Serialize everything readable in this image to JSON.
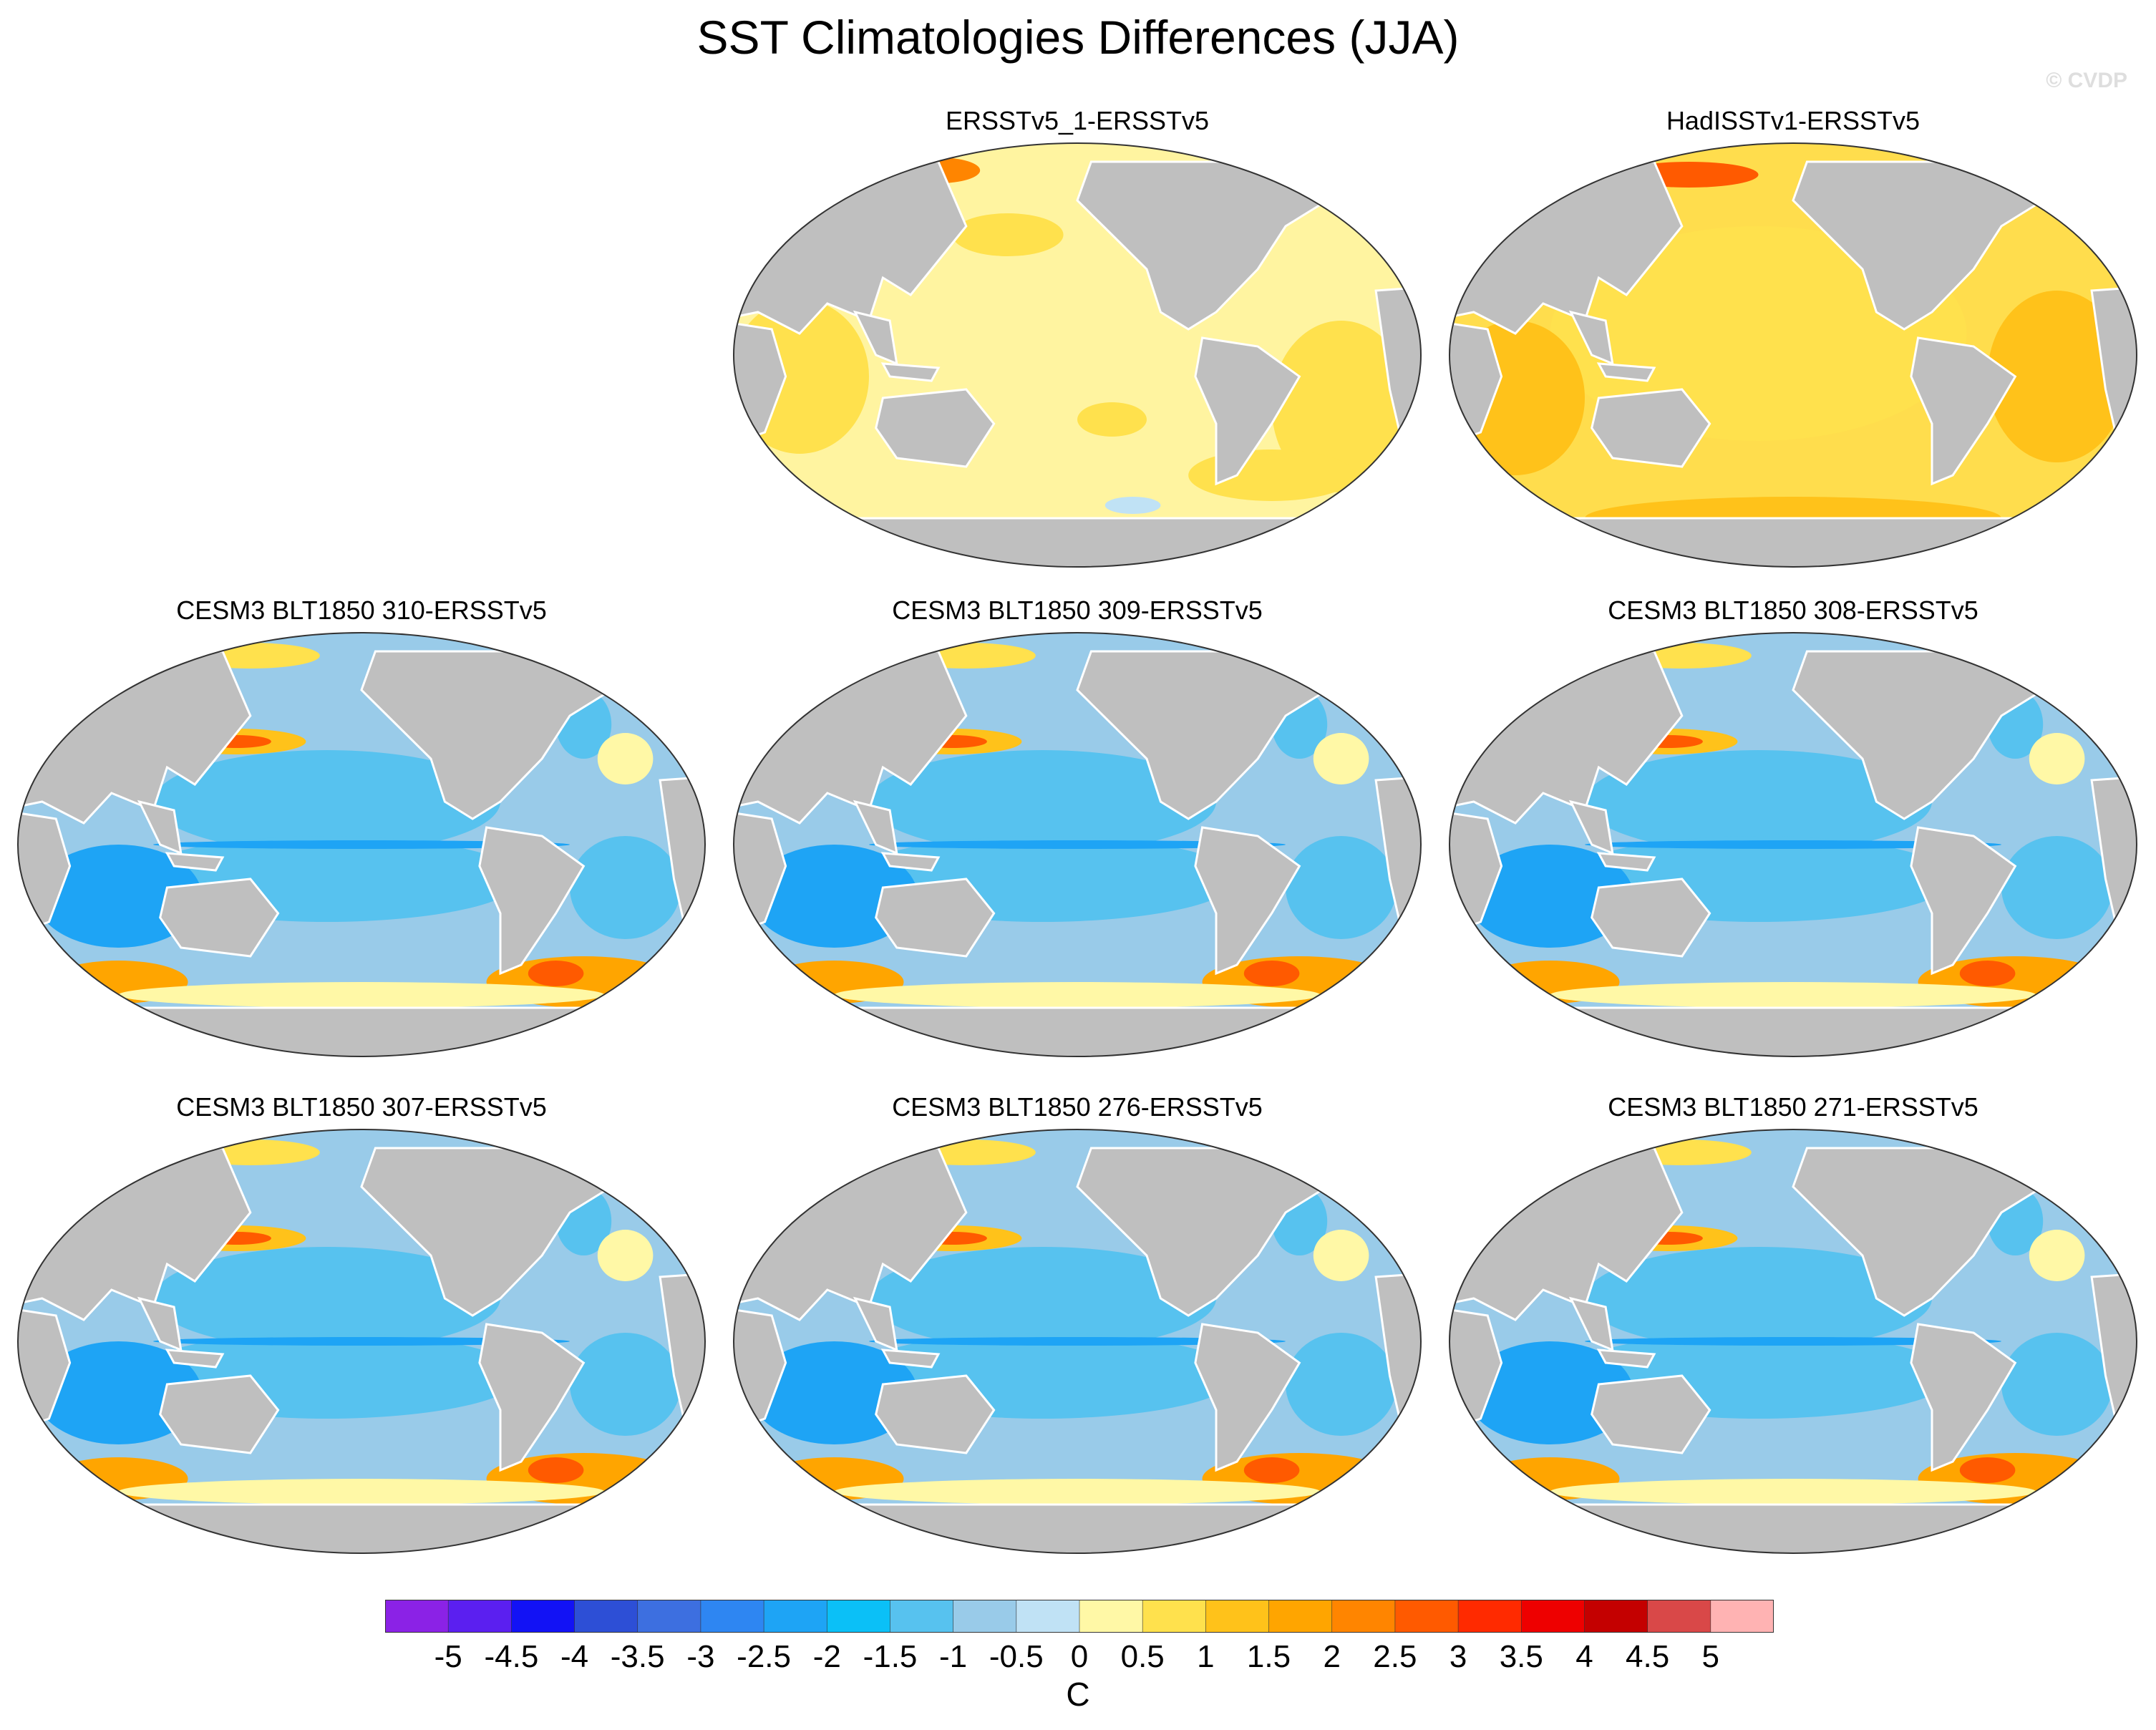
{
  "title": "SST Climatologies Differences (JJA)",
  "watermark": "© CVDP",
  "units": "C",
  "colorbar": {
    "labels": [
      "-5",
      "-4.5",
      "-4",
      "-3.5",
      "-3",
      "-2.5",
      "-2",
      "-1.5",
      "-1",
      "-0.5",
      "0",
      "0.5",
      "1",
      "1.5",
      "2",
      "2.5",
      "3",
      "3.5",
      "4",
      "4.5",
      "5"
    ],
    "colors": [
      "#8b22e6",
      "#5b1ff0",
      "#1212f5",
      "#2d4fd6",
      "#3d6fe0",
      "#2e86f2",
      "#1ea4f5",
      "#0bc0f7",
      "#57c2ef",
      "#99cbe9",
      "#c0e2f5",
      "#fff8a6",
      "#ffe14d",
      "#ffc21a",
      "#ffa500",
      "#ff8500",
      "#ff5a00",
      "#ff2a00",
      "#ee0000",
      "#c40000",
      "#d94848",
      "#ffb3b3"
    ]
  },
  "panels": [
    {
      "id": "p1",
      "title": "ERSSTv5_1-ERSSTv5",
      "style": "obs-light"
    },
    {
      "id": "p2",
      "title": "HadISSTv1-ERSSTv5",
      "style": "obs-warm"
    },
    {
      "id": "p3",
      "title": "CESM3 BLT1850 310-ERSSTv5",
      "style": "model"
    },
    {
      "id": "p4",
      "title": "CESM3 BLT1850 309-ERSSTv5",
      "style": "model"
    },
    {
      "id": "p5",
      "title": "CESM3 BLT1850 308-ERSSTv5",
      "style": "model"
    },
    {
      "id": "p6",
      "title": "CESM3 BLT1850 307-ERSSTv5",
      "style": "model"
    },
    {
      "id": "p7",
      "title": "CESM3 BLT1850 276-ERSSTv5",
      "style": "model"
    },
    {
      "id": "p8",
      "title": "CESM3 BLT1850 271-ERSSTv5",
      "style": "model"
    }
  ]
}
